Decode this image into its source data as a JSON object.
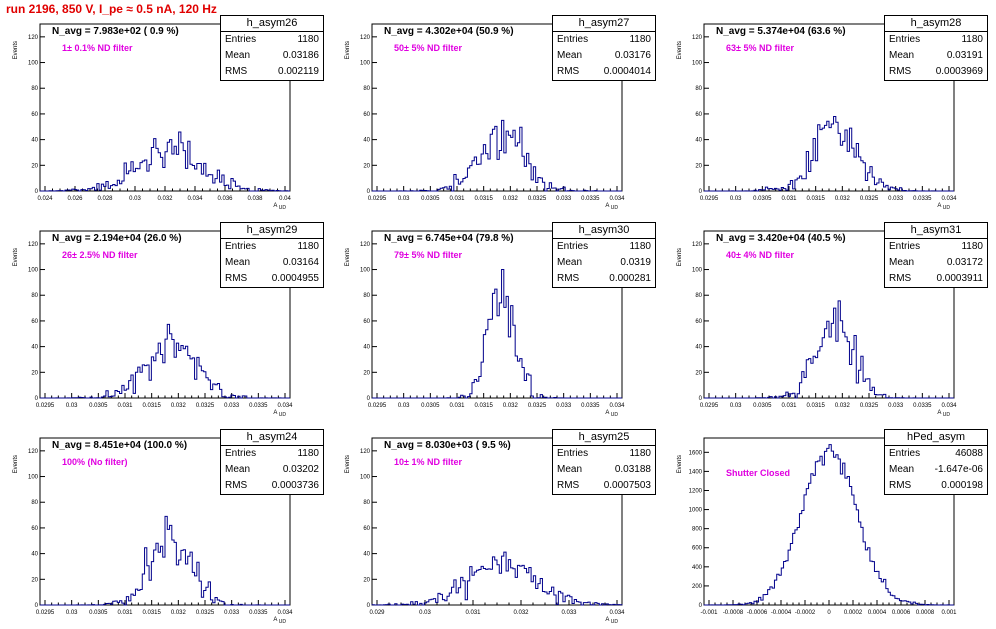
{
  "title": "run 2196,   850 V, I_pe ≈ 0.5 nA, 120 Hz",
  "colors": {
    "title": "#e00000",
    "label": "#e000e0",
    "histogram": "#00008b",
    "axis": "#000000"
  },
  "stat_labels": {
    "entries": "Entries",
    "mean": "Mean",
    "rms": "RMS"
  },
  "chart_data": [
    {
      "type": "histogram",
      "name": "h_asym26",
      "entries": "1180",
      "mean": "0.03186",
      "rms": "0.002119",
      "n_avg": "N_avg = 7.983e+02 ( 0.9 %)",
      "filter": "1± 0.1% ND filter",
      "xlabel": "A_UD",
      "ylabel": "Events",
      "x_ticks": [
        "0.024",
        "0.026",
        "0.028",
        "0.03",
        "0.032",
        "0.034",
        "0.036",
        "0.038",
        "0.04"
      ],
      "y_ticks": [
        "0",
        "20",
        "40",
        "60",
        "80",
        "100",
        "120"
      ],
      "ylim": [
        0,
        130
      ],
      "peak": 40,
      "grid": false
    },
    {
      "type": "histogram",
      "name": "h_asym27",
      "entries": "1180",
      "mean": "0.03176",
      "rms": "0.0004014",
      "n_avg": "N_avg = 4.302e+04 (50.9 %)",
      "filter": "50± 5% ND filter",
      "xlabel": "A_UD",
      "ylabel": "Events",
      "x_ticks": [
        "0.0295",
        "0.03",
        "0.0305",
        "0.031",
        "0.0315",
        "0.032",
        "0.0325",
        "0.033",
        "0.0335",
        "0.034"
      ],
      "y_ticks": [
        "0",
        "20",
        "40",
        "60",
        "80",
        "100",
        "120"
      ],
      "ylim": [
        0,
        130
      ],
      "peak": 55,
      "grid": false
    },
    {
      "type": "histogram",
      "name": "h_asym28",
      "entries": "1180",
      "mean": "0.03191",
      "rms": "0.0003969",
      "n_avg": "N_avg = 5.374e+04 (63.6 %)",
      "filter": "63± 5% ND filter",
      "xlabel": "A_UD",
      "ylabel": "Events",
      "x_ticks": [
        "0.0295",
        "0.03",
        "0.0305",
        "0.031",
        "0.0315",
        "0.032",
        "0.0325",
        "0.033",
        "0.0335",
        "0.034"
      ],
      "y_ticks": [
        "0",
        "20",
        "40",
        "60",
        "80",
        "100",
        "120"
      ],
      "ylim": [
        0,
        130
      ],
      "peak": 58,
      "grid": false
    },
    {
      "type": "histogram",
      "name": "h_asym29",
      "entries": "1180",
      "mean": "0.03164",
      "rms": "0.0004955",
      "n_avg": "N_avg = 2.194e+04 (26.0 %)",
      "filter": "26± 2.5% ND filter",
      "xlabel": "A_UD",
      "ylabel": "Events",
      "x_ticks": [
        "0.0295",
        "0.03",
        "0.0305",
        "0.031",
        "0.0315",
        "0.032",
        "0.0325",
        "0.033",
        "0.0335",
        "0.034"
      ],
      "y_ticks": [
        "0",
        "20",
        "40",
        "60",
        "80",
        "100",
        "120"
      ],
      "ylim": [
        0,
        130
      ],
      "peak": 50,
      "grid": false
    },
    {
      "type": "histogram",
      "name": "h_asym30",
      "entries": "1180",
      "mean": "0.0319",
      "rms": "0.000281",
      "n_avg": "N_avg = 6.745e+04 (79.8 %)",
      "filter": "79± 5% ND filter",
      "xlabel": "A_UD",
      "ylabel": "Events",
      "x_ticks": [
        "0.0295",
        "0.03",
        "0.0305",
        "0.031",
        "0.0315",
        "0.032",
        "0.0325",
        "0.033",
        "0.0335",
        "0.034"
      ],
      "y_ticks": [
        "0",
        "20",
        "40",
        "60",
        "80",
        "100",
        "120"
      ],
      "ylim": [
        0,
        130
      ],
      "peak": 100,
      "grid": false
    },
    {
      "type": "histogram",
      "name": "h_asym31",
      "entries": "1180",
      "mean": "0.03172",
      "rms": "0.0003911",
      "n_avg": "N_avg = 3.420e+04 (40.5 %)",
      "filter": "40± 4% ND filter",
      "xlabel": "A_UD",
      "ylabel": "Events",
      "x_ticks": [
        "0.0295",
        "0.03",
        "0.0305",
        "0.031",
        "0.0315",
        "0.032",
        "0.0325",
        "0.033",
        "0.0335",
        "0.034"
      ],
      "y_ticks": [
        "0",
        "20",
        "40",
        "60",
        "80",
        "100",
        "120"
      ],
      "ylim": [
        0,
        130
      ],
      "peak": 70,
      "grid": false
    },
    {
      "type": "histogram",
      "name": "h_asym24",
      "entries": "1180",
      "mean": "0.03202",
      "rms": "0.0003736",
      "n_avg": "N_avg = 8.451e+04 (100.0 %)",
      "filter": "100% (No filter)",
      "xlabel": "A_UD",
      "ylabel": "Events",
      "x_ticks": [
        "0.0295",
        "0.03",
        "0.0305",
        "0.031",
        "0.0315",
        "0.032",
        "0.0325",
        "0.033",
        "0.0335",
        "0.034"
      ],
      "y_ticks": [
        "0",
        "20",
        "40",
        "60",
        "80",
        "100",
        "120"
      ],
      "ylim": [
        0,
        130
      ],
      "peak": 62,
      "grid": false
    },
    {
      "type": "histogram",
      "name": "h_asym25",
      "entries": "1180",
      "mean": "0.03188",
      "rms": "0.0007503",
      "n_avg": "N_avg = 8.030e+03 ( 9.5 %)",
      "filter": "10± 1% ND filter",
      "xlabel": "A_UD",
      "ylabel": "Events",
      "x_ticks": [
        "0.029",
        "0.03",
        "0.031",
        "0.032",
        "0.033",
        "0.034"
      ],
      "y_ticks": [
        "0",
        "20",
        "40",
        "60",
        "80",
        "100",
        "120"
      ],
      "ylim": [
        0,
        130
      ],
      "peak": 38,
      "grid": false
    },
    {
      "type": "histogram",
      "name": "hPed_asym",
      "entries": "46088",
      "mean": "-1.647e-06",
      "rms": "0.000198",
      "n_avg": "",
      "filter": "Shutter Closed",
      "xlabel": "",
      "ylabel": "Events",
      "x_ticks": [
        "-0.001",
        "-0.0008",
        "-0.0006",
        "-0.0004",
        "-0.0002",
        "0",
        "0.0002",
        "0.0004",
        "0.0006",
        "0.0008",
        "0.001"
      ],
      "y_ticks": [
        "0",
        "200",
        "400",
        "600",
        "800",
        "1000",
        "1200",
        "1400",
        "1600"
      ],
      "ylim": [
        0,
        1750
      ],
      "peak": 1680,
      "grid": false
    }
  ]
}
